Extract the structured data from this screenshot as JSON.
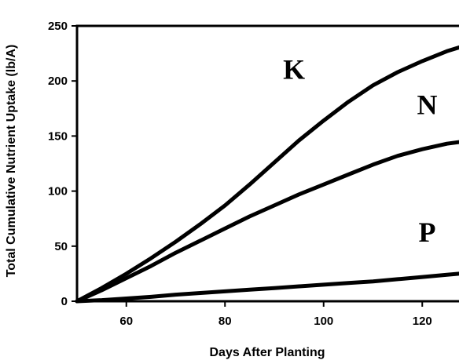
{
  "chart_data": {
    "type": "line",
    "title": "",
    "xlabel": "Days After Planting",
    "ylabel": "Total Cumulative Nutrient Uptake (lb/A)",
    "xlim": [
      50,
      130
    ],
    "ylim": [
      0,
      250
    ],
    "xticks": [
      60,
      80,
      100,
      120
    ],
    "yticks": [
      0,
      50,
      100,
      150,
      200,
      250
    ],
    "grid": false,
    "legend": "none",
    "series": [
      {
        "name": "K",
        "x": [
          50,
          55,
          60,
          65,
          70,
          75,
          80,
          85,
          90,
          95,
          100,
          105,
          110,
          115,
          120,
          125,
          130
        ],
        "y": [
          0,
          12,
          25,
          39,
          54,
          70,
          87,
          106,
          126,
          146,
          164,
          181,
          196,
          208,
          218,
          227,
          234
        ]
      },
      {
        "name": "N",
        "x": [
          50,
          55,
          60,
          65,
          70,
          75,
          80,
          85,
          90,
          95,
          100,
          105,
          110,
          115,
          120,
          125,
          130
        ],
        "y": [
          0,
          10,
          21,
          32,
          44,
          55,
          66,
          77,
          87,
          97,
          106,
          115,
          124,
          132,
          138,
          143,
          146
        ]
      },
      {
        "name": "P",
        "x": [
          50,
          55,
          60,
          65,
          70,
          75,
          80,
          85,
          90,
          95,
          100,
          105,
          110,
          115,
          120,
          125,
          130
        ],
        "y": [
          0,
          1,
          2.5,
          4,
          6,
          7.5,
          9,
          10.5,
          12,
          13.5,
          15,
          16.5,
          18,
          20,
          22,
          24,
          26
        ]
      }
    ],
    "annotations": [
      {
        "text": "K",
        "x": 94,
        "y": 202
      },
      {
        "text": "N",
        "x": 121,
        "y": 170
      },
      {
        "text": "P",
        "x": 121,
        "y": 54
      }
    ]
  }
}
